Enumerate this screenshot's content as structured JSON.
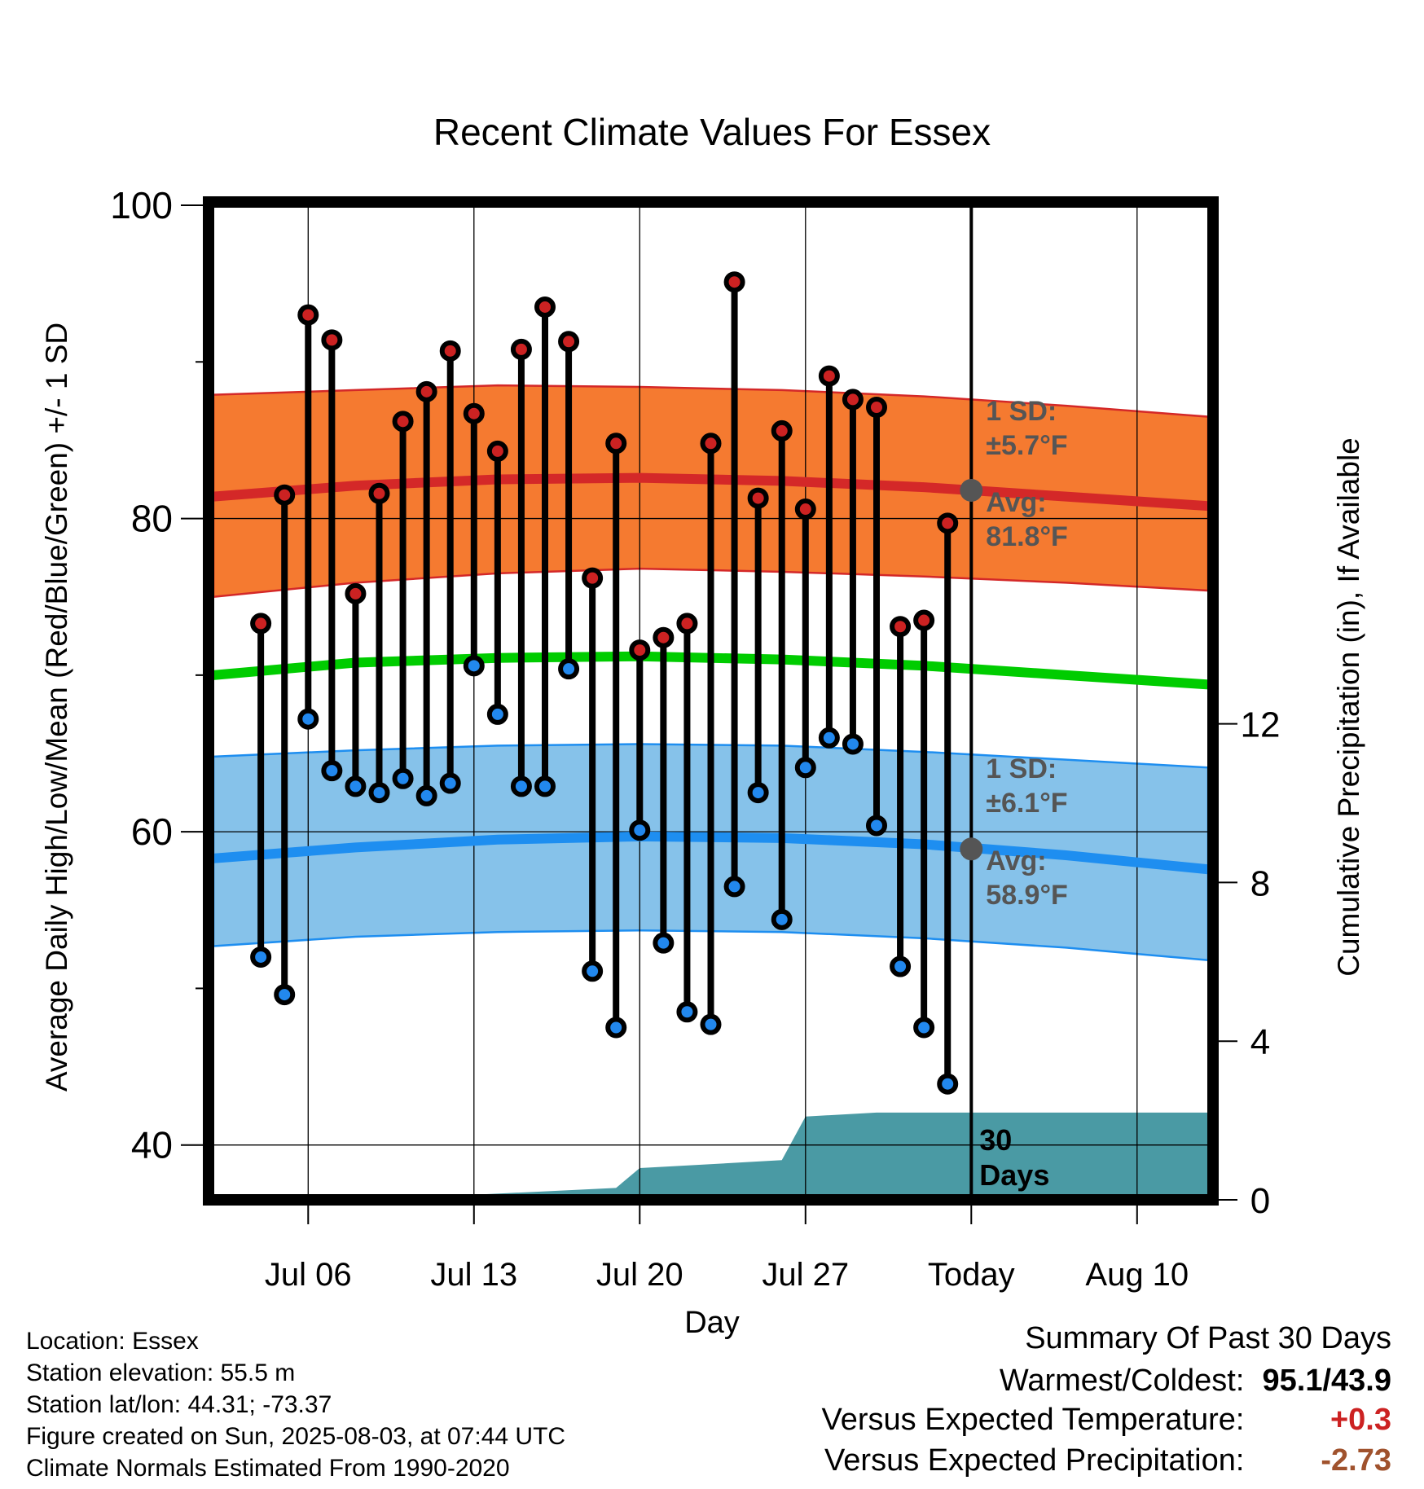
{
  "chart_data": {
    "type": "line",
    "title": "Recent Climate Values For Essex",
    "xlabel": "Day",
    "ylabel": "Average Daily High/Low/Mean (Red/Blue/Green) +/- 1 SD",
    "y2label": "Cumulative Precipitation (in), If Available",
    "ylim": [
      36.5,
      100
    ],
    "y2lim": [
      0,
      24
    ],
    "grid": true,
    "xlim": [
      "Jul 02",
      "Aug 13"
    ],
    "x_ticks": [
      {
        "date": "Jul 06",
        "label": "Jul 06"
      },
      {
        "date": "Jul 13",
        "label": "Jul 13"
      },
      {
        "date": "Jul 20",
        "label": "Jul 20"
      },
      {
        "date": "Jul 27",
        "label": "Jul 27"
      },
      {
        "date": "Aug 03",
        "label": "Today"
      },
      {
        "date": "Aug 10",
        "label": "Aug 10"
      }
    ],
    "y_ticks": [
      40,
      60,
      80,
      100
    ],
    "y2_ticks": [
      0,
      4,
      8,
      12
    ],
    "today": "Aug 03",
    "period_label": "30 Days",
    "daily": [
      {
        "date": "Jul 04",
        "high": 73.3,
        "low": 52.0
      },
      {
        "date": "Jul 05",
        "high": 81.5,
        "low": 49.6
      },
      {
        "date": "Jul 06",
        "high": 93.0,
        "low": 67.2
      },
      {
        "date": "Jul 07",
        "high": 91.4,
        "low": 63.9
      },
      {
        "date": "Jul 08",
        "high": 75.2,
        "low": 62.9
      },
      {
        "date": "Jul 09",
        "high": 81.6,
        "low": 62.5
      },
      {
        "date": "Jul 10",
        "high": 86.2,
        "low": 63.4
      },
      {
        "date": "Jul 11",
        "high": 88.1,
        "low": 62.3
      },
      {
        "date": "Jul 12",
        "high": 90.7,
        "low": 63.1
      },
      {
        "date": "Jul 13",
        "high": 86.7,
        "low": 70.6
      },
      {
        "date": "Jul 14",
        "high": 84.3,
        "low": 67.5
      },
      {
        "date": "Jul 15",
        "high": 90.8,
        "low": 62.9
      },
      {
        "date": "Jul 16",
        "high": 93.5,
        "low": 62.9
      },
      {
        "date": "Jul 17",
        "high": 91.3,
        "low": 70.4
      },
      {
        "date": "Jul 18",
        "high": 76.2,
        "low": 51.1
      },
      {
        "date": "Jul 19",
        "high": 84.8,
        "low": 47.5
      },
      {
        "date": "Jul 20",
        "high": 71.6,
        "low": 60.1
      },
      {
        "date": "Jul 21",
        "high": 72.4,
        "low": 52.9
      },
      {
        "date": "Jul 22",
        "high": 73.3,
        "low": 48.5
      },
      {
        "date": "Jul 23",
        "high": 84.8,
        "low": 47.7
      },
      {
        "date": "Jul 24",
        "high": 95.1,
        "low": 56.5
      },
      {
        "date": "Jul 25",
        "high": 81.3,
        "low": 62.5
      },
      {
        "date": "Jul 26",
        "high": 85.6,
        "low": 54.4
      },
      {
        "date": "Jul 27",
        "high": 80.6,
        "low": 64.1
      },
      {
        "date": "Jul 28",
        "high": 89.1,
        "low": 66.0
      },
      {
        "date": "Jul 29",
        "high": 87.6,
        "low": 65.6
      },
      {
        "date": "Jul 30",
        "high": 87.1,
        "low": 60.4
      },
      {
        "date": "Jul 31",
        "high": 73.1,
        "low": 51.4
      },
      {
        "date": "Aug 01",
        "high": 73.5,
        "low": 47.5
      },
      {
        "date": "Aug 02",
        "high": 79.7,
        "low": 43.9
      }
    ],
    "normals": {
      "dates": [
        "Jul 02",
        "Jul 08",
        "Jul 14",
        "Jul 20",
        "Jul 26",
        "Aug 01",
        "Aug 07",
        "Aug 13"
      ],
      "avg_high": [
        81.4,
        82.1,
        82.5,
        82.6,
        82.4,
        82.0,
        81.4,
        80.8
      ],
      "high_upper": [
        87.9,
        88.2,
        88.5,
        88.4,
        88.2,
        87.8,
        87.2,
        86.5
      ],
      "high_lower": [
        75.0,
        75.9,
        76.5,
        76.8,
        76.6,
        76.3,
        75.9,
        75.4
      ],
      "avg_mean": [
        70.0,
        70.8,
        71.1,
        71.2,
        71.0,
        70.6,
        70.0,
        69.4
      ],
      "avg_low": [
        58.3,
        59.0,
        59.5,
        59.7,
        59.6,
        59.2,
        58.5,
        57.6
      ],
      "low_upper": [
        64.8,
        65.2,
        65.5,
        65.6,
        65.5,
        65.1,
        64.6,
        64.1
      ],
      "low_lower": [
        52.7,
        53.3,
        53.6,
        53.7,
        53.6,
        53.2,
        52.6,
        51.8
      ]
    },
    "precipitation_cumulative": {
      "dates": [
        "Jul 02",
        "Jul 12",
        "Jul 19",
        "Jul 20",
        "Jul 26",
        "Jul 27",
        "Jul 30",
        "Aug 13"
      ],
      "values": [
        0.0,
        0.1,
        0.3,
        0.8,
        1.0,
        2.1,
        2.2,
        2.2
      ]
    },
    "annotations": {
      "high_sd": "1 SD:",
      "high_sd_value": "±5.7°F",
      "high_avg": "Avg:",
      "high_avg_value": "81.8°F",
      "low_sd": "1 SD:",
      "low_sd_value": "±6.1°F",
      "low_avg": "Avg:",
      "low_avg_value": "58.9°F"
    },
    "today_avg_high": 81.8,
    "today_avg_low": 58.9,
    "colors": {
      "high_band": "#f57a30",
      "high_line": "#d42828",
      "mean_line": "#00cc00",
      "low_band": "#86c2ea",
      "low_line": "#1e8ef0",
      "precip": "#4a9aa4",
      "high_marker": "#cc2222",
      "low_marker": "#2288ee",
      "annotation": "#555555"
    }
  },
  "footer": {
    "location": "Location: Essex",
    "elevation": "Station elevation: 55.5 m",
    "latlon": "Station lat/lon: 44.31; -73.37",
    "created": "Figure created on Sun, 2025-08-03, at 07:44 UTC",
    "normals": "Climate Normals Estimated From 1990-2020"
  },
  "summary": {
    "heading": "Summary Of Past 30 Days",
    "warm_cold_label": "Warmest/Coldest:",
    "warm_cold_value": "95.1/43.9",
    "temp_label": "Versus Expected Temperature:",
    "temp_value": "+0.3",
    "temp_color": "#cc2222",
    "precip_label": "Versus Expected Precipitation:",
    "precip_value": "-2.73",
    "precip_color": "#a0522d"
  }
}
